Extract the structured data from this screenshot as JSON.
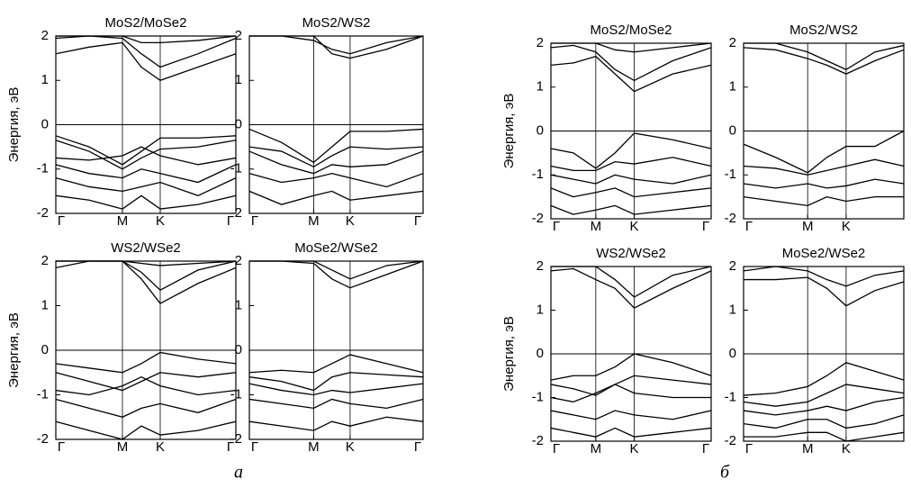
{
  "chart_data": [
    {
      "type": "line",
      "title": "MoS2/MoSe2",
      "ylabel": "Энергия, эВ",
      "color": "#000000",
      "xlim": [
        0,
        1
      ],
      "ylim": [
        -2,
        2
      ],
      "yticks": [
        -2,
        -1,
        0,
        1,
        2
      ],
      "xticks": [
        {
          "value": 0,
          "label": "Γ"
        },
        {
          "value": 0.37,
          "label": "M"
        },
        {
          "value": 0.58,
          "label": "K"
        },
        {
          "value": 1,
          "label": "Γ"
        }
      ],
      "xgrid": true,
      "hline": 0,
      "x": [
        0,
        0.185,
        0.37,
        0.475,
        0.58,
        0.79,
        1
      ],
      "series": [
        {
          "values": [
            1.6,
            1.75,
            1.85,
            1.3,
            1.0,
            1.3,
            1.6
          ]
        },
        {
          "values": [
            1.95,
            2,
            1.95,
            1.6,
            1.3,
            1.6,
            1.95
          ]
        },
        {
          "values": [
            2,
            2,
            2,
            1.85,
            1.85,
            1.9,
            2
          ]
        },
        {
          "values": [
            -0.25,
            -0.5,
            -0.9,
            -0.6,
            -0.3,
            -0.3,
            -0.25
          ]
        },
        {
          "values": [
            -0.35,
            -0.6,
            -1.0,
            -0.75,
            -0.55,
            -0.5,
            -0.35
          ]
        },
        {
          "values": [
            -0.75,
            -0.8,
            -0.7,
            -0.5,
            -0.7,
            -0.9,
            -0.75
          ]
        },
        {
          "values": [
            -0.9,
            -1.1,
            -1.2,
            -1.0,
            -1.1,
            -1.3,
            -0.9
          ]
        },
        {
          "values": [
            -1.2,
            -1.4,
            -1.5,
            -1.4,
            -1.3,
            -1.6,
            -1.2
          ]
        },
        {
          "values": [
            -1.6,
            -1.7,
            -1.9,
            -1.6,
            -1.9,
            -1.8,
            -1.6
          ]
        }
      ]
    },
    {
      "type": "line",
      "title": "MoS2/WS2",
      "color": "#000000",
      "xlim": [
        0,
        1
      ],
      "ylim": [
        -2,
        2
      ],
      "yticks": [
        -2,
        -1,
        0,
        1,
        2
      ],
      "xticks": [
        {
          "value": 0,
          "label": "Γ"
        },
        {
          "value": 0.37,
          "label": "M"
        },
        {
          "value": 0.58,
          "label": "K"
        },
        {
          "value": 1,
          "label": "Γ"
        }
      ],
      "xgrid": true,
      "hline": 0,
      "x": [
        0,
        0.185,
        0.37,
        0.475,
        0.58,
        0.79,
        1
      ],
      "series": [
        {
          "values": [
            2,
            2,
            2,
            1.6,
            1.5,
            1.7,
            2
          ]
        },
        {
          "values": [
            2,
            2,
            1.9,
            1.7,
            1.6,
            1.85,
            2
          ]
        },
        {
          "values": [
            -0.1,
            -0.4,
            -0.85,
            -0.5,
            -0.15,
            -0.15,
            -0.1
          ]
        },
        {
          "values": [
            -0.5,
            -0.6,
            -0.95,
            -0.7,
            -0.5,
            -0.55,
            -0.5
          ]
        },
        {
          "values": [
            -0.6,
            -0.9,
            -1.1,
            -0.9,
            -0.95,
            -0.9,
            -0.6
          ]
        },
        {
          "values": [
            -1.1,
            -1.3,
            -1.2,
            -1.1,
            -1.2,
            -1.4,
            -1.1
          ]
        },
        {
          "values": [
            -1.5,
            -1.8,
            -1.6,
            -1.5,
            -1.7,
            -1.6,
            -1.5
          ]
        }
      ]
    },
    {
      "type": "line",
      "title": "WS2/WSe2",
      "ylabel": "Энергия, эВ",
      "color": "#000000",
      "xlim": [
        0,
        1
      ],
      "ylim": [
        -2,
        2
      ],
      "yticks": [
        -2,
        -1,
        0,
        1,
        2
      ],
      "xticks": [
        {
          "value": 0,
          "label": "Γ"
        },
        {
          "value": 0.37,
          "label": "M"
        },
        {
          "value": 0.58,
          "label": "K"
        },
        {
          "value": 1,
          "label": "Γ"
        }
      ],
      "xgrid": true,
      "hline": 0,
      "x": [
        0,
        0.185,
        0.37,
        0.475,
        0.58,
        0.79,
        1
      ],
      "series": [
        {
          "values": [
            1.85,
            2,
            2,
            1.6,
            1.05,
            1.5,
            1.85
          ]
        },
        {
          "values": [
            2,
            2,
            2,
            1.75,
            1.35,
            1.8,
            2
          ]
        },
        {
          "values": [
            2,
            2,
            2,
            1.95,
            1.9,
            1.95,
            2
          ]
        },
        {
          "values": [
            -0.3,
            -0.4,
            -0.5,
            -0.3,
            -0.05,
            -0.2,
            -0.3
          ]
        },
        {
          "values": [
            -0.5,
            -0.7,
            -0.9,
            -0.7,
            -0.5,
            -0.6,
            -0.5
          ]
        },
        {
          "values": [
            -0.9,
            -1.0,
            -0.8,
            -0.6,
            -0.8,
            -1.0,
            -0.9
          ]
        },
        {
          "values": [
            -1.1,
            -1.3,
            -1.5,
            -1.3,
            -1.2,
            -1.4,
            -1.1
          ]
        },
        {
          "values": [
            -1.6,
            -1.8,
            -2,
            -1.7,
            -1.9,
            -1.8,
            -1.6
          ]
        }
      ]
    },
    {
      "type": "line",
      "title": "MoSe2/WSe2",
      "color": "#000000",
      "xlim": [
        0,
        1
      ],
      "ylim": [
        -2,
        2
      ],
      "yticks": [
        -2,
        -1,
        0,
        1,
        2
      ],
      "xticks": [
        {
          "value": 0,
          "label": "Γ"
        },
        {
          "value": 0.37,
          "label": "M"
        },
        {
          "value": 0.58,
          "label": "K"
        },
        {
          "value": 1,
          "label": "Γ"
        }
      ],
      "xgrid": true,
      "hline": 0,
      "x": [
        0,
        0.185,
        0.37,
        0.475,
        0.58,
        0.79,
        1
      ],
      "series": [
        {
          "values": [
            2,
            2,
            1.95,
            1.6,
            1.4,
            1.7,
            2
          ]
        },
        {
          "values": [
            2,
            2,
            2,
            1.8,
            1.6,
            1.9,
            2
          ]
        },
        {
          "values": [
            -0.5,
            -0.45,
            -0.5,
            -0.3,
            -0.1,
            -0.3,
            -0.5
          ]
        },
        {
          "values": [
            -0.6,
            -0.7,
            -0.9,
            -0.6,
            -0.5,
            -0.55,
            -0.6
          ]
        },
        {
          "values": [
            -0.75,
            -0.9,
            -1.0,
            -0.9,
            -0.95,
            -0.85,
            -0.75
          ]
        },
        {
          "values": [
            -1.1,
            -1.2,
            -1.3,
            -1.1,
            -1.2,
            -1.3,
            -1.1
          ]
        },
        {
          "values": [
            -1.6,
            -1.7,
            -1.8,
            -1.6,
            -1.7,
            -1.5,
            -1.6
          ]
        }
      ]
    },
    {
      "type": "line",
      "title": "MoS2/MoSe2",
      "ylabel": "Энергия, эВ",
      "color": "#000000",
      "xlim": [
        0,
        1
      ],
      "ylim": [
        -2,
        2
      ],
      "yticks": [
        -2,
        -1,
        0,
        1,
        2
      ],
      "xticks": [
        {
          "value": 0,
          "label": "Γ"
        },
        {
          "value": 0.28,
          "label": "M"
        },
        {
          "value": 0.52,
          "label": "K"
        },
        {
          "value": 1,
          "label": "Γ"
        }
      ],
      "xgrid": true,
      "hline": 0,
      "x": [
        0,
        0.14,
        0.28,
        0.4,
        0.52,
        0.76,
        1
      ],
      "series": [
        {
          "values": [
            1.5,
            1.55,
            1.7,
            1.3,
            0.9,
            1.3,
            1.5
          ]
        },
        {
          "values": [
            1.9,
            1.95,
            1.8,
            1.4,
            1.15,
            1.6,
            1.9
          ]
        },
        {
          "values": [
            2,
            2,
            2,
            1.85,
            1.8,
            1.9,
            2
          ]
        },
        {
          "values": [
            -0.4,
            -0.5,
            -0.85,
            -0.5,
            -0.05,
            -0.2,
            -0.4
          ]
        },
        {
          "values": [
            -0.8,
            -0.9,
            -0.9,
            -0.7,
            -0.75,
            -0.6,
            -0.8
          ]
        },
        {
          "values": [
            -1.0,
            -1.1,
            -1.2,
            -1.0,
            -1.1,
            -1.2,
            -1.0
          ]
        },
        {
          "values": [
            -1.3,
            -1.5,
            -1.4,
            -1.3,
            -1.5,
            -1.4,
            -1.3
          ]
        },
        {
          "values": [
            -1.7,
            -1.9,
            -1.8,
            -1.7,
            -1.9,
            -1.8,
            -1.7
          ]
        }
      ]
    },
    {
      "type": "line",
      "title": "MoS2/WS2",
      "color": "#000000",
      "xlim": [
        0,
        1
      ],
      "ylim": [
        -2,
        2
      ],
      "yticks": [
        -2,
        -1,
        0,
        1,
        2
      ],
      "xticks": [
        {
          "value": 0,
          "label": "Γ"
        },
        {
          "value": 0.4,
          "label": "M"
        },
        {
          "value": 0.64,
          "label": "K"
        }
      ],
      "xgrid": true,
      "hline": 0,
      "x": [
        0,
        0.2,
        0.4,
        0.52,
        0.64,
        0.82,
        1
      ],
      "series": [
        {
          "values": [
            1.9,
            1.85,
            1.65,
            1.5,
            1.3,
            1.6,
            1.85
          ]
        },
        {
          "values": [
            2,
            2,
            1.8,
            1.6,
            1.4,
            1.8,
            1.95
          ]
        },
        {
          "values": [
            -0.3,
            -0.6,
            -0.95,
            -0.6,
            -0.35,
            -0.35,
            0
          ]
        },
        {
          "values": [
            -0.8,
            -0.85,
            -1.0,
            -0.9,
            -0.8,
            -0.65,
            -0.8
          ]
        },
        {
          "values": [
            -1.2,
            -1.3,
            -1.2,
            -1.3,
            -1.25,
            -1.1,
            -1.2
          ]
        },
        {
          "values": [
            -1.5,
            -1.6,
            -1.7,
            -1.5,
            -1.6,
            -1.5,
            -1.5
          ]
        }
      ]
    },
    {
      "type": "line",
      "title": "WS2/WSe2",
      "ylabel": "Энергия, эВ",
      "color": "#000000",
      "xlim": [
        0,
        1
      ],
      "ylim": [
        -2,
        2
      ],
      "yticks": [
        -2,
        -1,
        0,
        1,
        2
      ],
      "xticks": [
        {
          "value": 0,
          "label": "Γ"
        },
        {
          "value": 0.28,
          "label": "M"
        },
        {
          "value": 0.52,
          "label": "K"
        },
        {
          "value": 1,
          "label": "Γ"
        }
      ],
      "xgrid": true,
      "hline": 0,
      "x": [
        0,
        0.14,
        0.28,
        0.4,
        0.52,
        0.76,
        1
      ],
      "series": [
        {
          "values": [
            1.9,
            1.95,
            1.7,
            1.5,
            1.05,
            1.5,
            1.9
          ]
        },
        {
          "values": [
            2,
            2,
            2,
            1.7,
            1.3,
            1.8,
            2
          ]
        },
        {
          "values": [
            -0.6,
            -0.5,
            -0.5,
            -0.3,
            0,
            -0.2,
            -0.5
          ]
        },
        {
          "values": [
            -0.7,
            -0.8,
            -0.95,
            -0.7,
            -0.5,
            -0.6,
            -0.7
          ]
        },
        {
          "values": [
            -1.0,
            -1.1,
            -0.9,
            -0.7,
            -0.9,
            -1.0,
            -1.0
          ]
        },
        {
          "values": [
            -1.3,
            -1.4,
            -1.5,
            -1.3,
            -1.4,
            -1.5,
            -1.3
          ]
        },
        {
          "values": [
            -1.7,
            -1.8,
            -1.9,
            -1.7,
            -1.9,
            -1.8,
            -1.7
          ]
        }
      ]
    },
    {
      "type": "line",
      "title": "MoSe2/WSe2",
      "color": "#000000",
      "xlim": [
        0,
        1
      ],
      "ylim": [
        -2,
        2
      ],
      "yticks": [
        -2,
        -1,
        0,
        1,
        2
      ],
      "xticks": [
        {
          "value": 0,
          "label": "Γ"
        },
        {
          "value": 0.4,
          "label": "M"
        },
        {
          "value": 0.64,
          "label": "K"
        }
      ],
      "xgrid": true,
      "hline": 0,
      "x": [
        0,
        0.2,
        0.4,
        0.52,
        0.64,
        0.82,
        1
      ],
      "series": [
        {
          "values": [
            1.7,
            1.7,
            1.75,
            1.5,
            1.1,
            1.45,
            1.65
          ]
        },
        {
          "values": [
            1.9,
            2,
            1.9,
            1.7,
            1.55,
            1.8,
            1.9
          ]
        },
        {
          "values": [
            -0.95,
            -0.9,
            -0.75,
            -0.5,
            -0.2,
            -0.4,
            -0.6
          ]
        },
        {
          "values": [
            -1.1,
            -1.2,
            -1.1,
            -0.9,
            -0.7,
            -0.8,
            -0.9
          ]
        },
        {
          "values": [
            -1.3,
            -1.4,
            -1.3,
            -1.2,
            -1.3,
            -1.1,
            -1.0
          ]
        },
        {
          "values": [
            -1.6,
            -1.7,
            -1.5,
            -1.5,
            -1.7,
            -1.6,
            -1.4
          ]
        },
        {
          "values": [
            -1.9,
            -1.9,
            -1.8,
            -1.8,
            -2,
            -1.9,
            -1.8
          ]
        }
      ]
    }
  ],
  "group_labels": [
    "а",
    "б"
  ]
}
